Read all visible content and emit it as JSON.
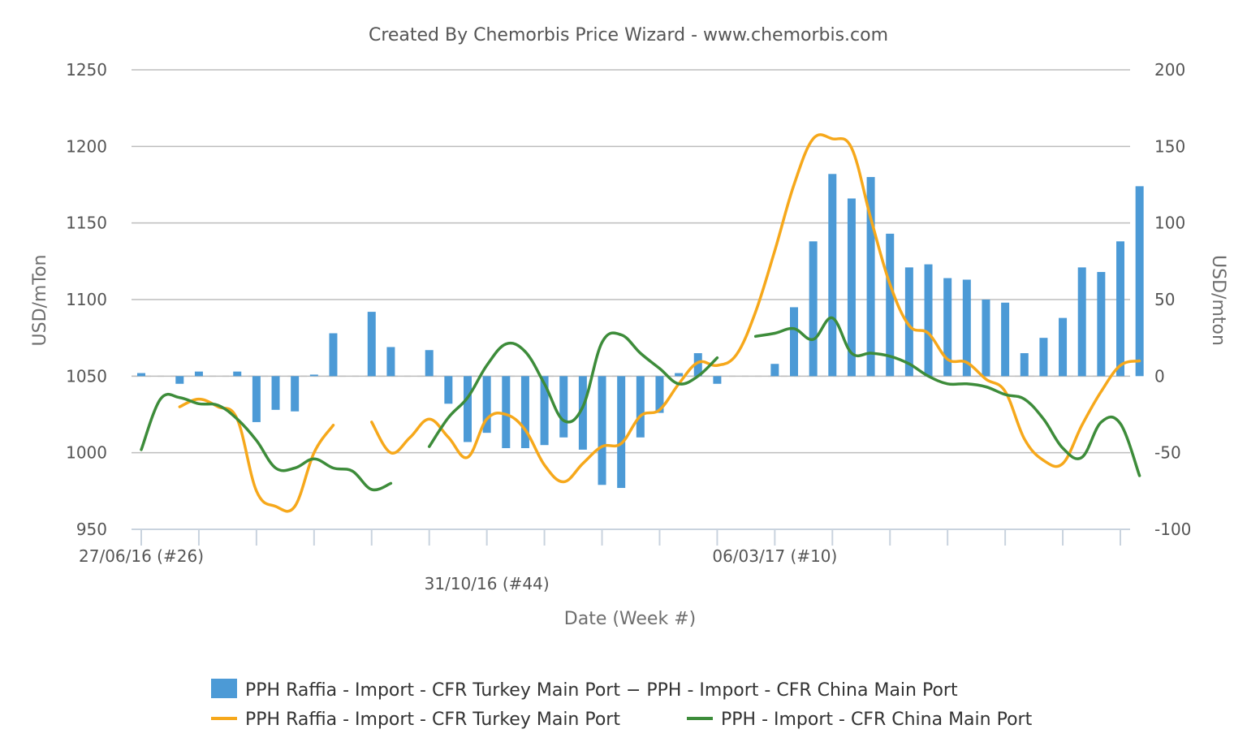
{
  "chart_data": {
    "type": "bar+line",
    "title": "Created By Chemorbis Price Wizard - www.chemorbis.com",
    "xlabel": "Date (Week #)",
    "ylabel_left": "USD/mTon",
    "ylabel_right": "USD/mton",
    "ylim_left": [
      950,
      1250
    ],
    "ylim_right": [
      -100,
      200
    ],
    "yticks_left": [
      "950",
      "1000",
      "1050",
      "1100",
      "1150",
      "1200",
      "1250"
    ],
    "yticks_right": [
      "-100",
      "-50",
      "0",
      "50",
      "100",
      "150",
      "200"
    ],
    "x_tick_labels": [
      {
        "index": 0,
        "label": "27/06/16 (#26)"
      },
      {
        "index": 18,
        "label": "31/10/16 (#44)"
      },
      {
        "index": 33,
        "label": "06/03/17 (#10)"
      }
    ],
    "num_weeks": 52,
    "legend_position": "bottom",
    "series": [
      {
        "name": "PPH Raffia - Import - CFR Turkey Main Port − PPH - Import - CFR China Main Port",
        "type": "bar",
        "axis": "right",
        "color": "#4c9ad6",
        "values": [
          2,
          0,
          -5,
          3,
          0,
          3,
          -30,
          -22,
          -23,
          1,
          28,
          0,
          42,
          19,
          0,
          17,
          -18,
          -43,
          -37,
          -47,
          -47,
          -45,
          -40,
          -48,
          -71,
          -73,
          -40,
          -24,
          2,
          15,
          -5,
          0,
          0,
          8,
          45,
          88,
          132,
          116,
          130,
          93,
          71,
          73,
          64,
          63,
          50,
          48,
          15,
          25,
          38,
          71,
          68,
          88,
          124
        ]
      },
      {
        "name": "PPH Raffia - Import - CFR Turkey Main Port",
        "type": "line",
        "axis": "left",
        "color": "#f6a81b",
        "values": [
          null,
          null,
          1030,
          1035,
          1030,
          1022,
          975,
          965,
          965,
          1000,
          1018,
          null,
          1020,
          1000,
          1010,
          1022,
          1010,
          997,
          1022,
          1025,
          1015,
          992,
          981,
          993,
          1004,
          1006,
          1024,
          1028,
          1045,
          1059,
          1057,
          1064,
          1092,
          1132,
          1175,
          1205,
          1205,
          1199,
          1153,
          1110,
          1083,
          1078,
          1061,
          1059,
          1048,
          1040,
          1009,
          995,
          993,
          1018,
          1040,
          1057,
          1060
        ]
      },
      {
        "name": "PPH - Import - CFR China Main Port",
        "type": "line",
        "axis": "left",
        "color": "#3d8c3a",
        "values": [
          1002,
          1035,
          1036,
          1032,
          1031,
          1022,
          1008,
          990,
          990,
          996,
          990,
          988,
          976,
          980,
          null,
          1004,
          1023,
          1036,
          1057,
          1071,
          1066,
          1045,
          1021,
          1030,
          1072,
          1077,
          1065,
          1055,
          1045,
          1050,
          1062,
          null,
          1076,
          1078,
          1081,
          1074,
          1088,
          1065,
          1065,
          1063,
          1058,
          1050,
          1045,
          1045,
          1043,
          1038,
          1035,
          1022,
          1003,
          997,
          1020,
          1019,
          985
        ]
      }
    ]
  }
}
